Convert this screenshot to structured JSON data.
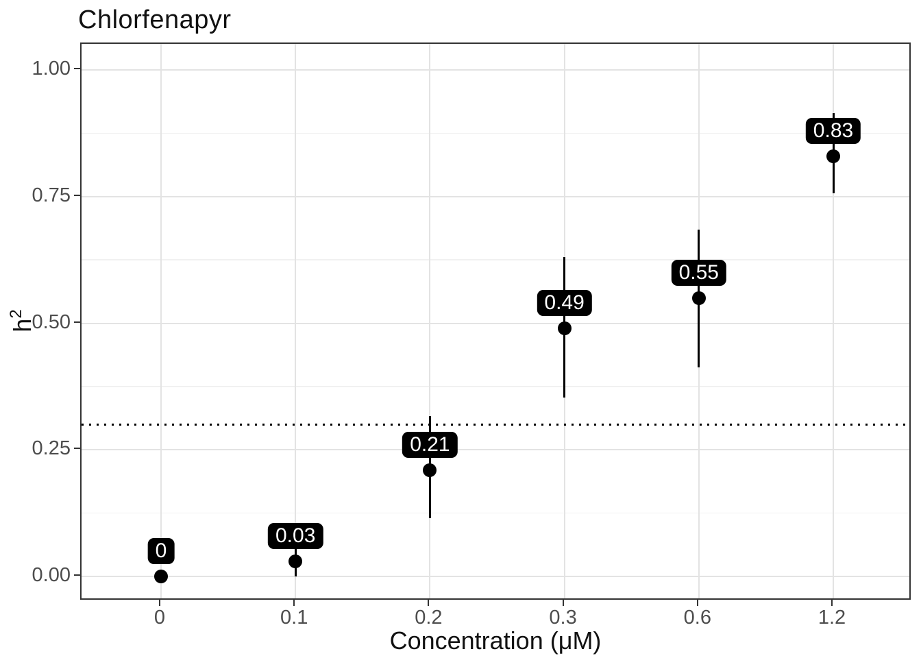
{
  "chart_data": {
    "type": "scatter",
    "title": "Chlorfenapyr",
    "xlabel": "Concentration (μM)",
    "ylabel_base": "h",
    "ylabel_sup": "2",
    "categories": [
      "0",
      "0.1",
      "0.2",
      "0.3",
      "0.6",
      "1.2"
    ],
    "values": [
      0,
      0.03,
      0.21,
      0.49,
      0.55,
      0.83
    ],
    "point_labels": [
      "0",
      "0.03",
      "0.21",
      "0.49",
      "0.55",
      "0.83"
    ],
    "error_low": [
      0,
      0,
      0.115,
      0.353,
      0.413,
      0.756
    ],
    "error_high": [
      0,
      0.06,
      0.317,
      0.631,
      0.685,
      0.915
    ],
    "reference_line_y": 0.3,
    "reference_line_style": "dotted",
    "ylim": [
      0,
      1
    ],
    "y_major_ticks": [
      0,
      0.25,
      0.5,
      0.75,
      1.0
    ],
    "y_tick_labels": [
      "0.00",
      "0.25",
      "0.50",
      "0.75",
      "1.00"
    ],
    "y_minor_ticks": [
      0.125,
      0.375,
      0.625,
      0.875
    ],
    "grid": true,
    "legend": false,
    "colors": {
      "point": "#000000",
      "error_bar": "#000000",
      "label_bg": "#000000",
      "label_text": "#ffffff",
      "grid_major": "#e3e3e3",
      "grid_minor": "#f1f1f1",
      "panel_border": "#333333",
      "tick_text": "#4d4d4d",
      "title_text": "#111111",
      "reference_line": "#000000"
    }
  }
}
